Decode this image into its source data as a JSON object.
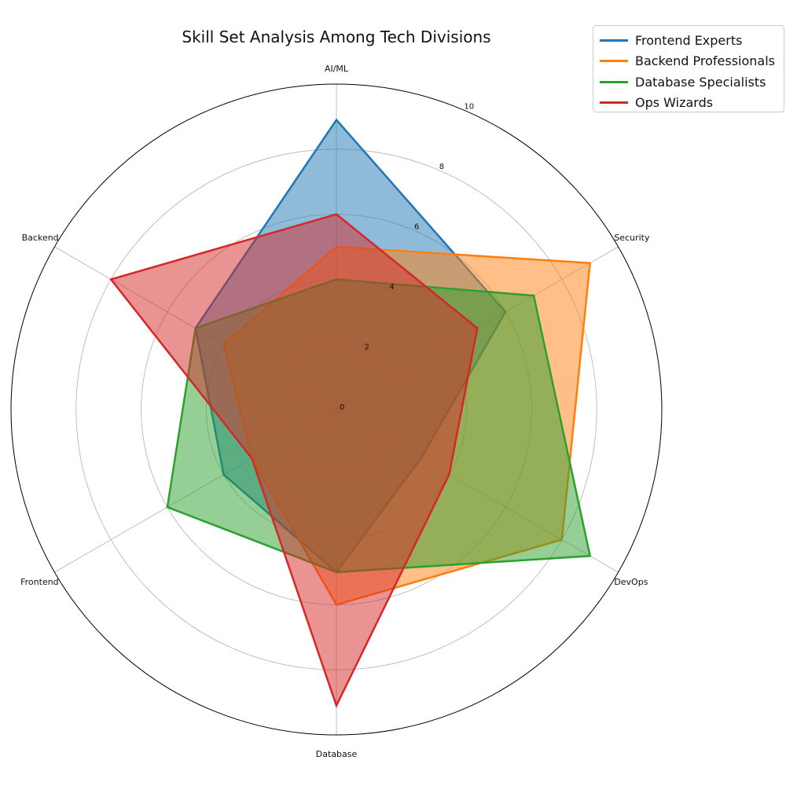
{
  "chart_data": {
    "type": "radar",
    "title": "Skill Set Analysis Among Tech Divisions",
    "categories": [
      "AI/ML",
      "Security",
      "DevOps",
      "Database",
      "Frontend",
      "Backend"
    ],
    "rlim": [
      0,
      10
    ],
    "rticks": [
      "0",
      "2",
      "4",
      "6",
      "8",
      "10"
    ],
    "grid": true,
    "legend_position": "top-right",
    "series": [
      {
        "name": "Frontend Experts",
        "color": "#1f77b4",
        "values": [
          8.9,
          6.0,
          3.0,
          5.0,
          4.0,
          5.0
        ]
      },
      {
        "name": "Backend Professionals",
        "color": "#ff7f0e",
        "values": [
          5.0,
          9.0,
          8.0,
          6.0,
          3.0,
          4.0
        ]
      },
      {
        "name": "Database Specialists",
        "color": "#2ca02c",
        "values": [
          4.0,
          7.0,
          9.0,
          5.0,
          6.0,
          5.0
        ]
      },
      {
        "name": "Ops Wizards",
        "color": "#d62728",
        "values": [
          6.0,
          5.0,
          4.0,
          9.1,
          3.0,
          8.0
        ]
      }
    ]
  }
}
